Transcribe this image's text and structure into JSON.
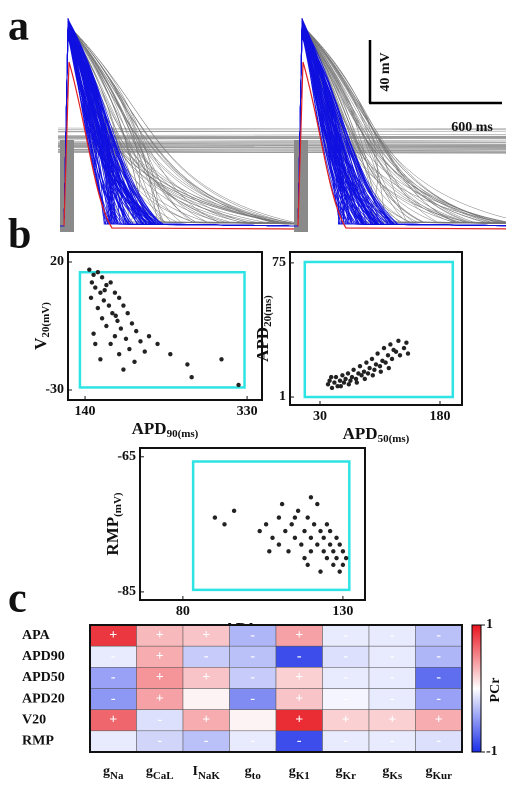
{
  "panel_labels": [
    "a",
    "b",
    "c"
  ],
  "scale_bar": {
    "vertical": "40 mV",
    "horizontal": "600 ms"
  },
  "chart_data": [
    {
      "type": "scatter",
      "x_label": {
        "text": "APD",
        "sub": "90(ms)"
      },
      "y_label": {
        "text": "V",
        "sub": "20(mV)"
      },
      "x": [
        145,
        150,
        155,
        148,
        160,
        152,
        165,
        158,
        170,
        147,
        162,
        175,
        168,
        180,
        155,
        172,
        185,
        160,
        178,
        190,
        165,
        182,
        195,
        150,
        175,
        200,
        188,
        170,
        205,
        192,
        215,
        180,
        210,
        225,
        158,
        198,
        240,
        185,
        260,
        265,
        300,
        320,
        152,
        163,
        176
      ],
      "y": [
        17,
        15,
        16,
        12,
        14,
        10,
        11,
        8,
        12,
        6,
        5,
        8,
        3,
        6,
        2,
        0,
        3,
        -2,
        -3,
        0,
        -5,
        -6,
        -4,
        -8,
        -9,
        -7,
        -10,
        -12,
        -11,
        -14,
        -9,
        -16,
        -15,
        -12,
        -18,
        -19,
        -16,
        -22,
        -20,
        -25,
        -18,
        -28,
        -12,
        9,
        -1
      ],
      "xlim": [
        120,
        347.5
      ],
      "ylim": [
        -33.9,
        23.9
      ],
      "xticks": [
        140,
        330
      ],
      "yticks": [
        20,
        -30
      ],
      "range_box": {
        "x": [
          134,
          327
        ],
        "y": [
          -29,
          16
        ]
      },
      "color": "#222222",
      "box_color": "#2ee3e3"
    },
    {
      "type": "scatter",
      "x_label": {
        "text": "APD",
        "sub": "50(ms)"
      },
      "y_label": {
        "text": "APD",
        "sub": "20(ms)"
      },
      "x": [
        40,
        42,
        45,
        48,
        50,
        52,
        55,
        58,
        60,
        62,
        65,
        68,
        70,
        72,
        75,
        78,
        80,
        82,
        85,
        88,
        90,
        92,
        95,
        98,
        100,
        102,
        105,
        108,
        110,
        112,
        115,
        118,
        120,
        122,
        125,
        128,
        130,
        44,
        56,
        66,
        76,
        86,
        96,
        106,
        116,
        135,
        140,
        138
      ],
      "y": [
        8,
        10,
        6,
        9,
        12,
        7,
        10,
        13,
        9,
        11,
        14,
        10,
        12,
        16,
        11,
        14,
        18,
        13,
        15,
        20,
        14,
        17,
        22,
        16,
        19,
        25,
        18,
        21,
        28,
        20,
        24,
        30,
        22,
        27,
        26,
        32,
        24,
        12,
        7,
        8,
        9,
        11,
        13,
        15,
        17,
        28,
        25,
        31
      ],
      "xlim": [
        -7.5,
        207.5
      ],
      "ylim": [
        -3.4,
        81
      ],
      "xticks": [
        30,
        180
      ],
      "yticks": [
        75,
        1
      ],
      "range_box": {
        "x": [
          11,
          196
        ],
        "y": [
          1,
          75.5
        ]
      },
      "color": "#222222",
      "box_color": "#2ee3e3"
    },
    {
      "type": "scatter",
      "x_label": {
        "text": "APA",
        "sub": "(mV)"
      },
      "y_label": {
        "text": "RMP",
        "sub": "(mV)"
      },
      "x": [
        90,
        93,
        96,
        104,
        106,
        108,
        110,
        110,
        112,
        113,
        114,
        115,
        116,
        117,
        118,
        118,
        119,
        120,
        120,
        121,
        122,
        122,
        123,
        124,
        124,
        125,
        125,
        126,
        126,
        127,
        127,
        128,
        128,
        129,
        130,
        130,
        131,
        120,
        115,
        107,
        111,
        119,
        123,
        129
      ],
      "y": [
        -74,
        -75,
        -73,
        -76,
        -75,
        -77,
        -74,
        -78,
        -76,
        -79,
        -75,
        -77,
        -73,
        -78,
        -76,
        -80,
        -74,
        -77,
        -79,
        -75,
        -78,
        -72,
        -76,
        -79,
        -77,
        -80,
        -75,
        -78,
        -76,
        -79,
        -81,
        -77,
        -80,
        -78,
        -79,
        -81,
        -80,
        -71,
        -74,
        -79,
        -72,
        -81,
        -82,
        -82
      ],
      "xlim": [
        66.6,
        136.9
      ],
      "ylim": [
        -86.2,
        -63.7
      ],
      "xticks": [
        80,
        130
      ],
      "yticks": [
        -65,
        -85
      ],
      "range_box": {
        "x": [
          83.2,
          132
        ],
        "y": [
          -84.7,
          -65.7
        ]
      },
      "color": "#222222",
      "box_color": "#2ee3e3"
    },
    {
      "type": "heatmap",
      "rows": [
        "APA",
        "APD90",
        "APD50",
        "APD20",
        "V20",
        "RMP"
      ],
      "columns": [
        {
          "text": "g",
          "sub": "Na"
        },
        {
          "text": "g",
          "sub": "CaL"
        },
        {
          "text": "I",
          "sub": "NaK"
        },
        {
          "text": "g",
          "sub": "to"
        },
        {
          "text": "g",
          "sub": "K1"
        },
        {
          "text": "g",
          "sub": "Kr"
        },
        {
          "text": "g",
          "sub": "Ks"
        },
        {
          "text": "g",
          "sub": "Kur"
        }
      ],
      "values": [
        [
          0.85,
          0.3,
          0.25,
          -0.35,
          0.4,
          -0.1,
          -0.1,
          -0.3
        ],
        [
          -0.1,
          0.35,
          -0.25,
          -0.3,
          -0.85,
          -0.15,
          -0.1,
          -0.35
        ],
        [
          -0.45,
          0.45,
          0.25,
          -0.25,
          0.2,
          -0.1,
          -0.1,
          -0.7
        ],
        [
          -0.5,
          0.4,
          0.05,
          -0.55,
          0.25,
          -0.05,
          -0.1,
          -0.45
        ],
        [
          0.65,
          -0.15,
          0.35,
          0.05,
          0.9,
          0.2,
          0.2,
          0.35
        ],
        [
          -0.1,
          -0.2,
          -0.3,
          -0.1,
          -0.85,
          -0.1,
          -0.1,
          -0.15
        ]
      ],
      "value_labels": [
        [
          "+",
          "+",
          "+",
          "-",
          "+",
          "-",
          "-",
          "-"
        ],
        [
          "-",
          "+",
          "-",
          "-",
          "-",
          "-",
          "-",
          "-"
        ],
        [
          "-",
          "+",
          "+",
          "-",
          "+",
          "-",
          "-",
          "-"
        ],
        [
          "-",
          "+",
          null,
          "-",
          "+",
          "-",
          "-",
          "-"
        ],
        [
          "+",
          "-",
          "+",
          null,
          "+",
          "+",
          "+",
          "+"
        ],
        [
          null,
          "-",
          "-",
          "-",
          "-",
          "-",
          "-",
          "-"
        ]
      ],
      "colorbar_label": "PCr",
      "zlim": [
        -1,
        1
      ],
      "zticks": [
        1,
        -1
      ],
      "colors": {
        "low": "#1a2ee8",
        "mid": "#ffffff",
        "high": "#e8141e"
      }
    }
  ]
}
